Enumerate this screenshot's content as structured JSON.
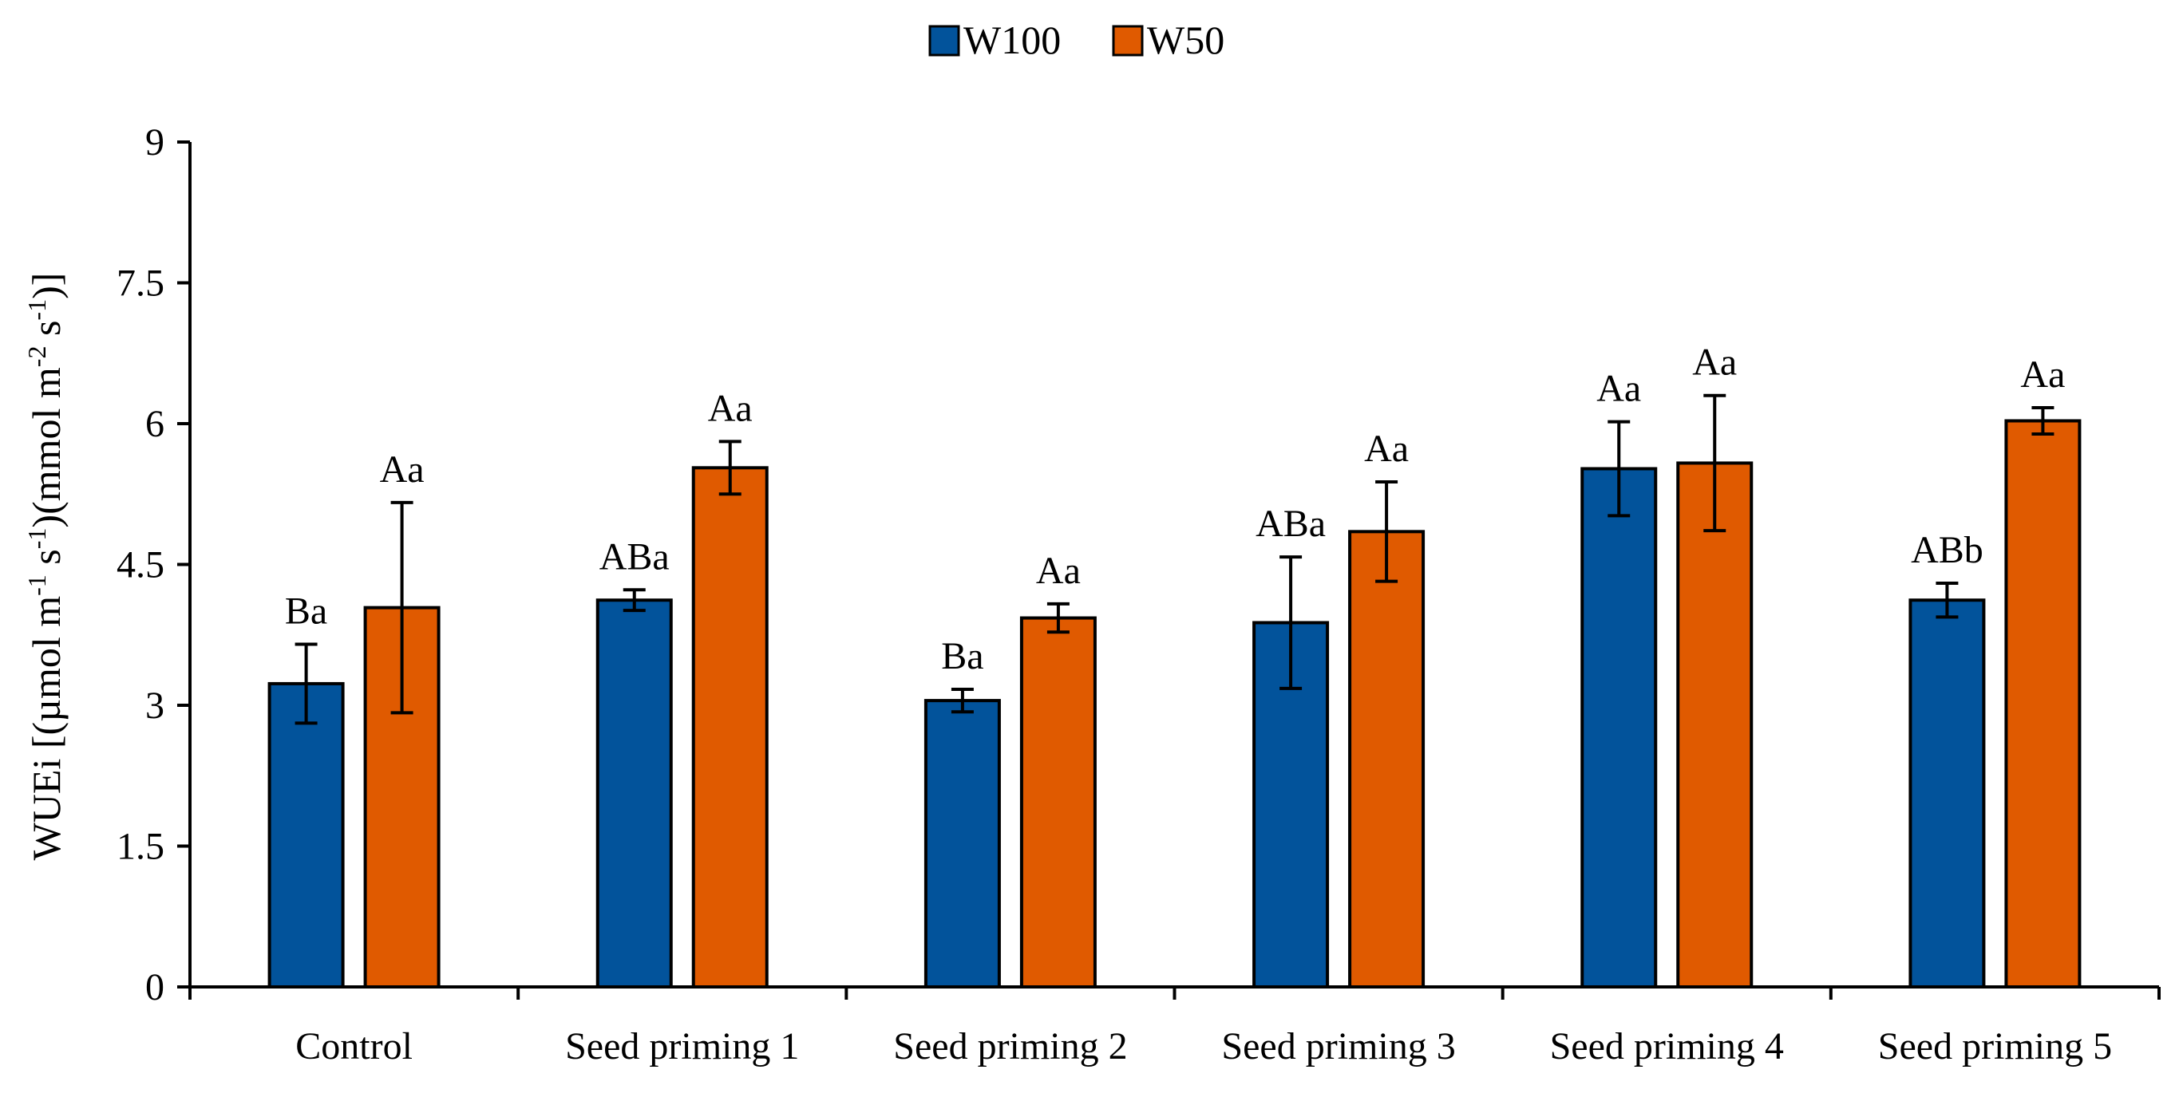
{
  "chart_data": {
    "type": "bar",
    "title": "",
    "xlabel": "",
    "ylabel_parts": {
      "prefix": "WUEi [(µmol m",
      "sup1": "-1",
      "mid1": " s",
      "sup2": "-1",
      "mid2": ")(mmol m",
      "sup3": "-2",
      "mid3": " s",
      "sup4": "-1",
      "suffix": ")]"
    },
    "ylim": [
      0,
      9
    ],
    "yticks": [
      "0",
      "1.5",
      "3",
      "4.5",
      "6",
      "7.5",
      "9"
    ],
    "ytick_values": [
      0,
      1.5,
      3,
      4.5,
      6,
      7.5,
      9
    ],
    "categories": [
      "Control",
      "Seed priming 1",
      "Seed priming 2",
      "Seed priming 3",
      "Seed priming 4",
      "Seed priming 5"
    ],
    "legend_position": "top-center",
    "series": [
      {
        "name": "W100",
        "color": "#02539B",
        "values": [
          3.23,
          4.12,
          3.05,
          3.88,
          5.52,
          4.12
        ],
        "errors": [
          0.42,
          0.11,
          0.12,
          0.7,
          0.5,
          0.18
        ],
        "labels": [
          "Ba",
          "ABa",
          "Ba",
          "ABa",
          "Aa",
          "ABb"
        ]
      },
      {
        "name": "W50",
        "color": "#E05A00",
        "values": [
          4.04,
          5.53,
          3.93,
          4.85,
          5.58,
          6.03
        ],
        "errors": [
          1.12,
          0.28,
          0.15,
          0.53,
          0.72,
          0.14
        ],
        "labels": [
          "Aa",
          "Aa",
          "Aa",
          "Aa",
          "Aa",
          "Aa"
        ]
      }
    ]
  }
}
